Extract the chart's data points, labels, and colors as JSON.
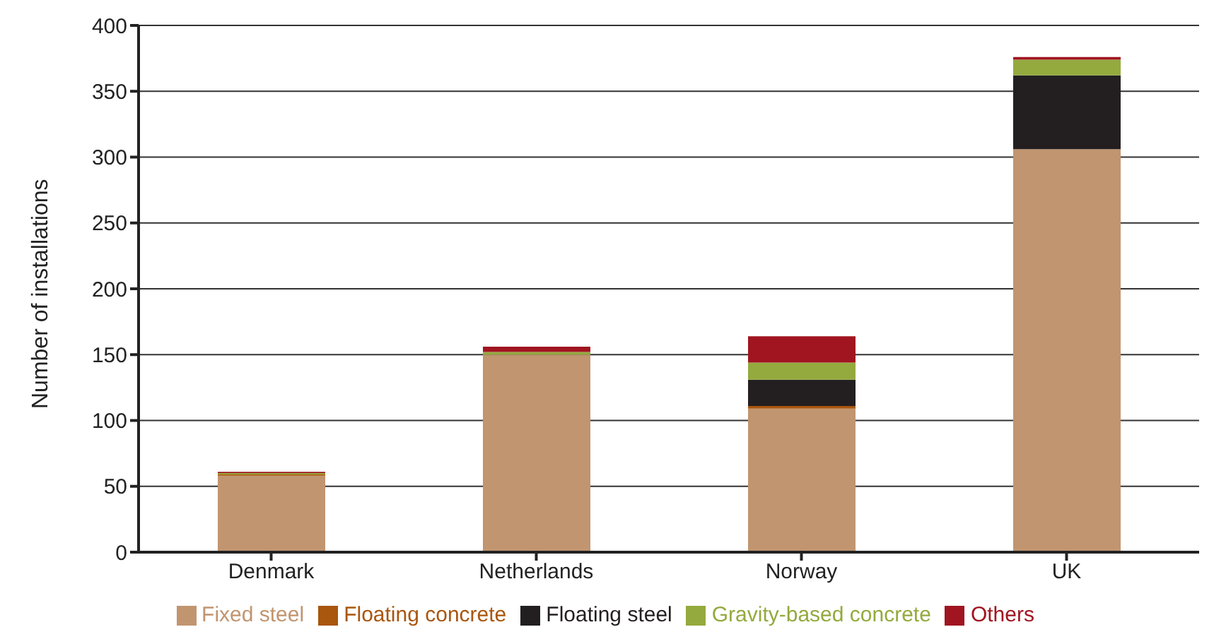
{
  "chart_data": {
    "type": "bar",
    "stacked": true,
    "ylabel": "Number of installations",
    "categories": [
      "Denmark",
      "Netherlands",
      "Norway",
      "UK"
    ],
    "series": [
      {
        "name": "Fixed steel",
        "color": "#c19570",
        "values": [
          58,
          150,
          109,
          306
        ]
      },
      {
        "name": "Floating concrete",
        "color": "#a9560e",
        "values": [
          1,
          0,
          2,
          0
        ]
      },
      {
        "name": "Floating steel",
        "color": "#231f20",
        "values": [
          0,
          0,
          20,
          56
        ]
      },
      {
        "name": "Gravity-based concrete",
        "color": "#94aa3e",
        "values": [
          1,
          2,
          13,
          12
        ]
      },
      {
        "name": "Others",
        "color": "#a01520",
        "values": [
          1,
          4,
          20,
          2
        ]
      }
    ],
    "ylim": [
      0,
      400
    ],
    "yticks": [
      0,
      50,
      100,
      150,
      200,
      250,
      300,
      350,
      400
    ],
    "grid": "y",
    "legend": "bottom"
  }
}
